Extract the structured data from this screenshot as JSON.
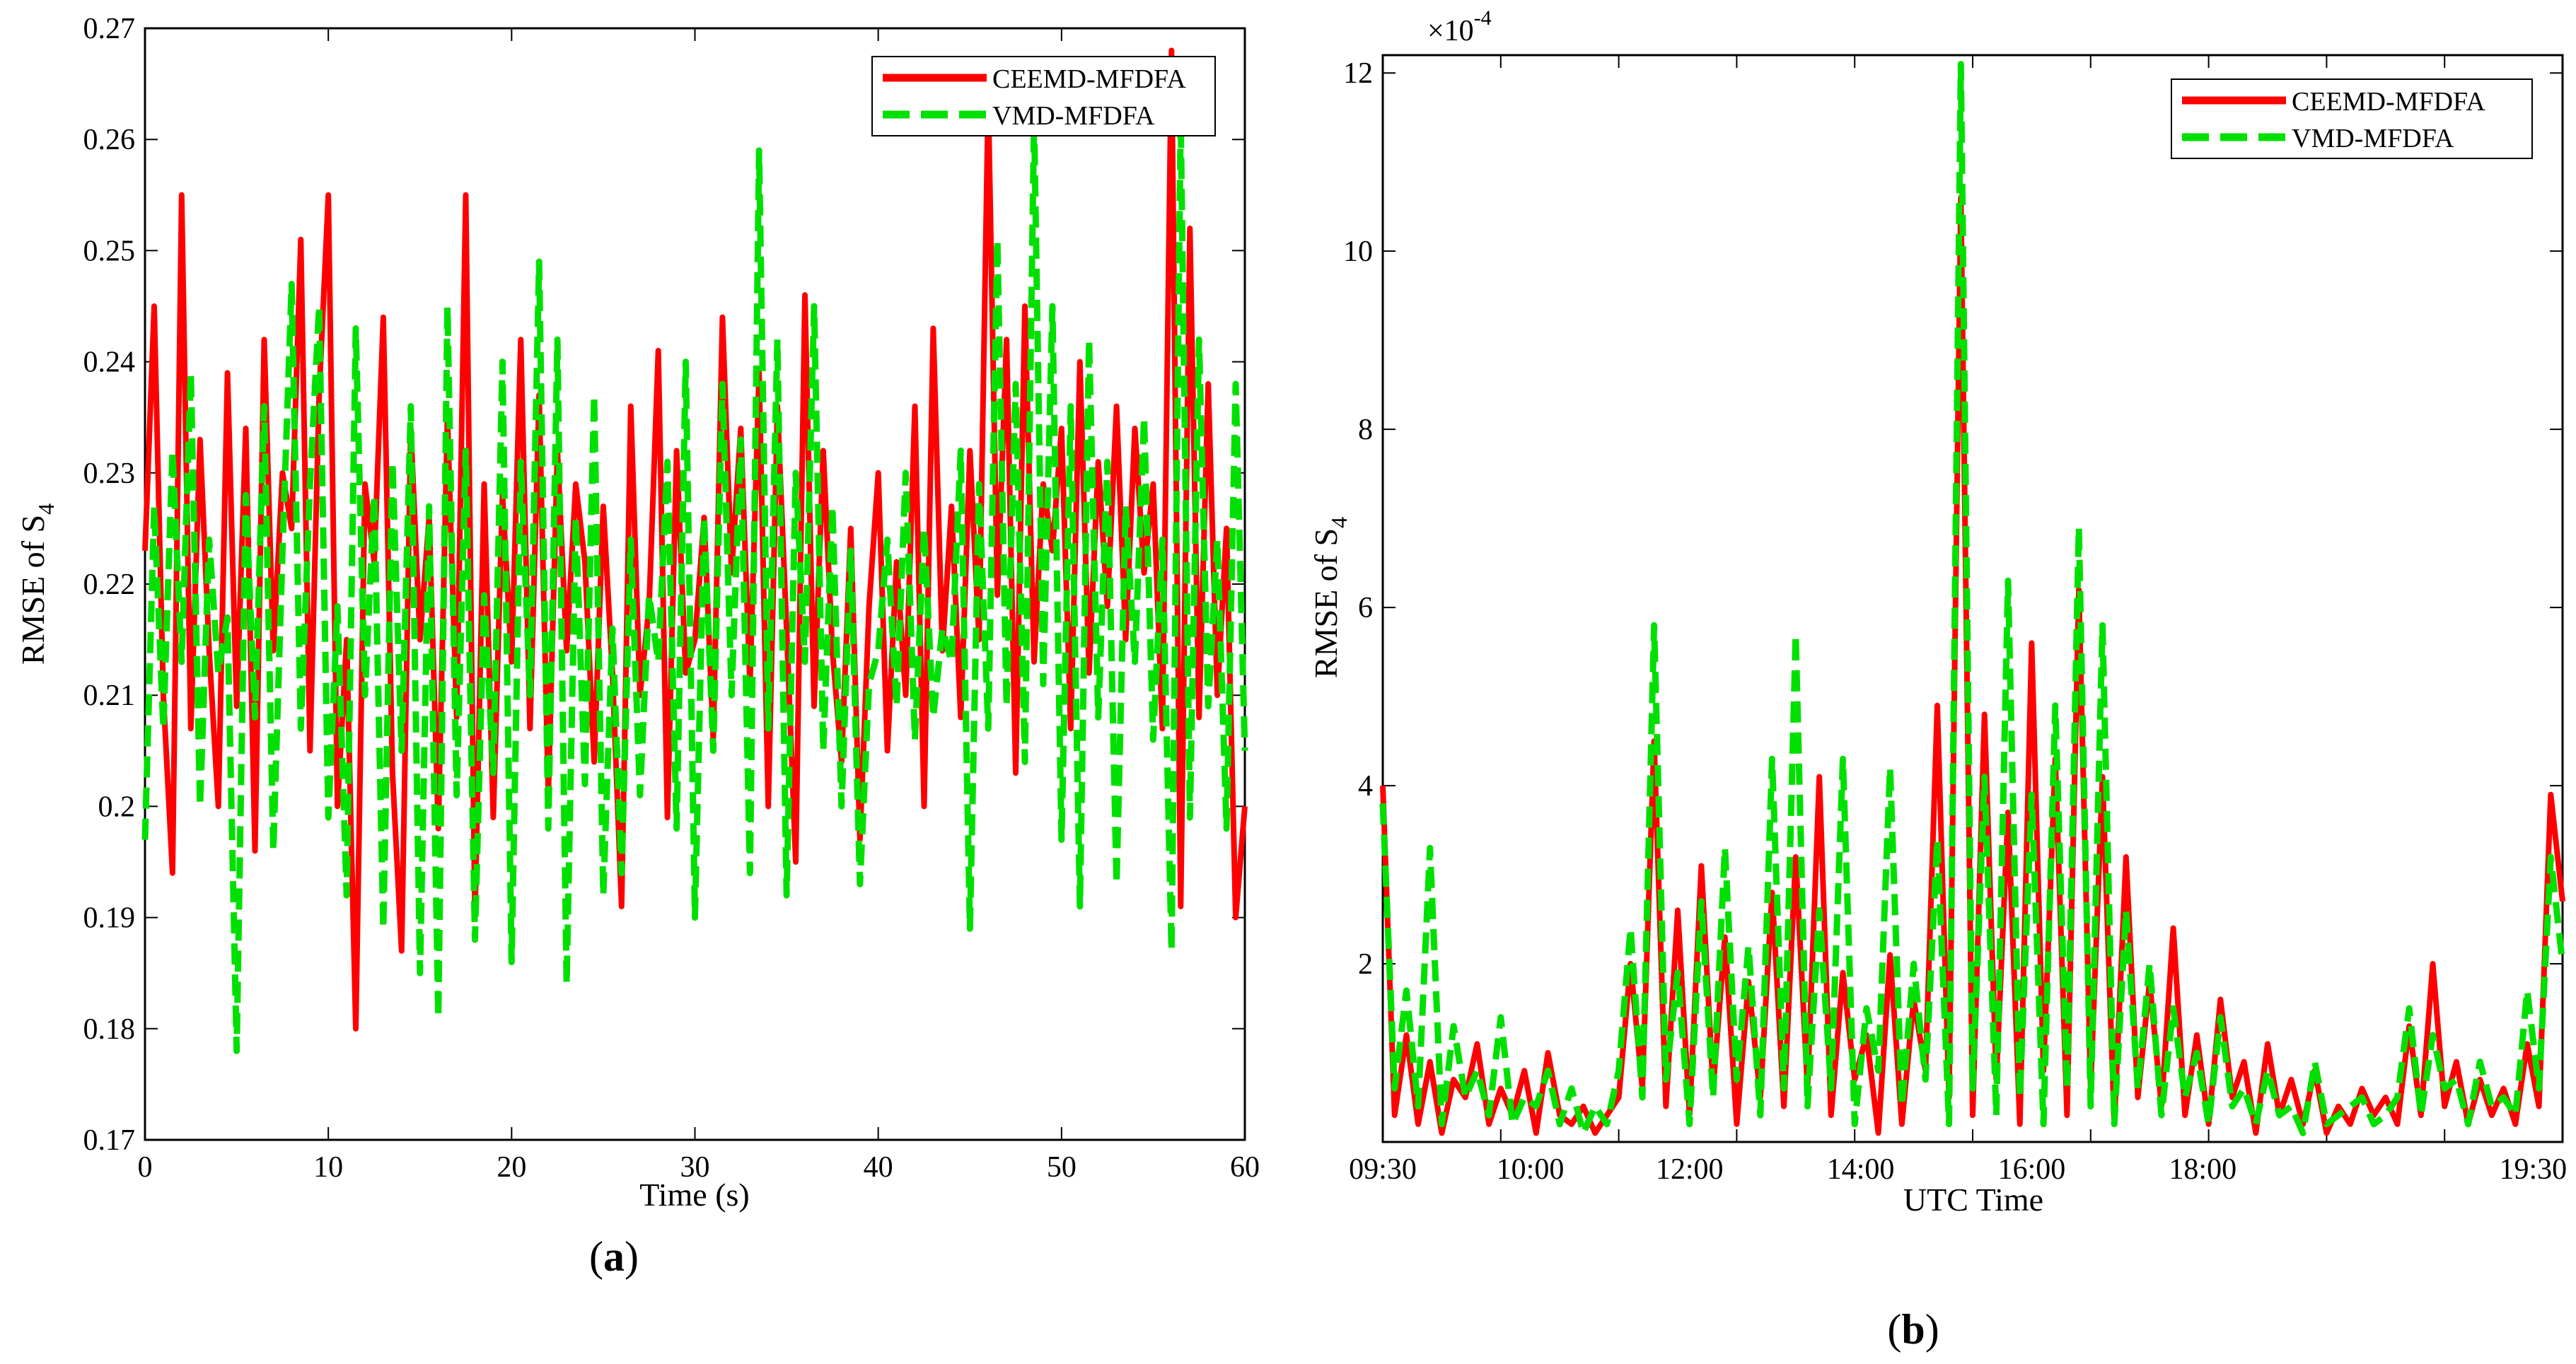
{
  "chart_data": [
    {
      "type": "line",
      "panel_label": "a",
      "title": "",
      "xlabel": "Time (s)",
      "ylabel": "RMSE of S",
      "ylabel_sub": "4",
      "xlim": [
        0,
        60
      ],
      "ylim": [
        0.17,
        0.27
      ],
      "xticks": [
        0,
        10,
        20,
        30,
        40,
        50,
        60
      ],
      "xtick_labels": [
        "0",
        "10",
        "20",
        "30",
        "40",
        "50",
        "60"
      ],
      "yticks": [
        0.17,
        0.18,
        0.19,
        0.2,
        0.21,
        0.22,
        0.23,
        0.24,
        0.25,
        0.26,
        0.27
      ],
      "ytick_labels": [
        "0.17",
        "0.18",
        "0.19",
        "0.2",
        "0.21",
        "0.22",
        "0.23",
        "0.24",
        "0.25",
        "0.26",
        "0.27"
      ],
      "legend_position": "top-right",
      "series": [
        {
          "name": "CEEMD-MFDFA",
          "color": "#ff0000",
          "style": "solid",
          "x": [
            0,
            0.5,
            1,
            1.5,
            2,
            2.5,
            3,
            3.5,
            4,
            4.5,
            5,
            5.5,
            6,
            6.5,
            7,
            7.5,
            8,
            8.5,
            9,
            9.5,
            10,
            10.5,
            11,
            11.5,
            12,
            12.5,
            13,
            13.5,
            14,
            14.5,
            15,
            15.5,
            16,
            16.5,
            17,
            17.5,
            18,
            18.5,
            19,
            19.5,
            20,
            20.5,
            21,
            21.5,
            22,
            22.5,
            23,
            23.5,
            24,
            24.5,
            25,
            25.5,
            26,
            26.5,
            27,
            27.5,
            28,
            28.5,
            29,
            29.5,
            30,
            30.5,
            31,
            31.5,
            32,
            32.5,
            33,
            33.5,
            34,
            34.5,
            35,
            35.5,
            36,
            36.5,
            37,
            37.5,
            38,
            38.5,
            39,
            39.5,
            40,
            40.5,
            41,
            41.5,
            42,
            42.5,
            43,
            43.5,
            44,
            44.5,
            45,
            45.5,
            46,
            46.5,
            47,
            47.5,
            48,
            48.5,
            49,
            49.5,
            50,
            50.5,
            51,
            51.5,
            52,
            52.5,
            53,
            53.5,
            54,
            54.5,
            55,
            55.5,
            56,
            56.5,
            57,
            57.5,
            58,
            58.5,
            59,
            59.5,
            60
          ],
          "y": [
            0.223,
            0.245,
            0.21,
            0.194,
            0.255,
            0.207,
            0.233,
            0.214,
            0.2,
            0.239,
            0.209,
            0.234,
            0.196,
            0.242,
            0.214,
            0.23,
            0.225,
            0.251,
            0.205,
            0.237,
            0.255,
            0.2,
            0.215,
            0.18,
            0.229,
            0.222,
            0.244,
            0.203,
            0.187,
            0.234,
            0.215,
            0.226,
            0.198,
            0.235,
            0.208,
            0.255,
            0.19,
            0.229,
            0.199,
            0.228,
            0.213,
            0.242,
            0.207,
            0.237,
            0.201,
            0.232,
            0.214,
            0.229,
            0.222,
            0.204,
            0.227,
            0.212,
            0.191,
            0.236,
            0.21,
            0.218,
            0.241,
            0.199,
            0.232,
            0.212,
            0.215,
            0.226,
            0.206,
            0.244,
            0.221,
            0.234,
            0.211,
            0.239,
            0.2,
            0.236,
            0.216,
            0.195,
            0.246,
            0.209,
            0.232,
            0.214,
            0.204,
            0.225,
            0.197,
            0.218,
            0.23,
            0.205,
            0.222,
            0.21,
            0.236,
            0.2,
            0.243,
            0.214,
            0.227,
            0.208,
            0.232,
            0.215,
            0.264,
            0.219,
            0.242,
            0.203,
            0.245,
            0.213,
            0.229,
            0.223,
            0.234,
            0.207,
            0.24,
            0.212,
            0.231,
            0.218,
            0.236,
            0.215,
            0.234,
            0.221,
            0.229,
            0.207,
            0.268,
            0.191,
            0.252,
            0.208,
            0.238,
            0.21,
            0.225,
            0.19,
            0.2
          ]
        },
        {
          "name": "VMD-MFDFA",
          "color": "#00e000",
          "style": "dashed",
          "x": [
            0,
            0.5,
            1,
            1.5,
            2,
            2.5,
            3,
            3.5,
            4,
            4.5,
            5,
            5.5,
            6,
            6.5,
            7,
            7.5,
            8,
            8.5,
            9,
            9.5,
            10,
            10.5,
            11,
            11.5,
            12,
            12.5,
            13,
            13.5,
            14,
            14.5,
            15,
            15.5,
            16,
            16.5,
            17,
            17.5,
            18,
            18.5,
            19,
            19.5,
            20,
            20.5,
            21,
            21.5,
            22,
            22.5,
            23,
            23.5,
            24,
            24.5,
            25,
            25.5,
            26,
            26.5,
            27,
            27.5,
            28,
            28.5,
            29,
            29.5,
            30,
            30.5,
            31,
            31.5,
            32,
            32.5,
            33,
            33.5,
            34,
            34.5,
            35,
            35.5,
            36,
            36.5,
            37,
            37.5,
            38,
            38.5,
            39,
            39.5,
            40,
            40.5,
            41,
            41.5,
            42,
            42.5,
            43,
            43.5,
            44,
            44.5,
            45,
            45.5,
            46,
            46.5,
            47,
            47.5,
            48,
            48.5,
            49,
            49.5,
            50,
            50.5,
            51,
            51.5,
            52,
            52.5,
            53,
            53.5,
            54,
            54.5,
            55,
            55.5,
            56,
            56.5,
            57,
            57.5,
            58,
            58.5,
            59,
            59.5,
            60
          ],
          "y": [
            0.197,
            0.227,
            0.207,
            0.232,
            0.213,
            0.239,
            0.2,
            0.224,
            0.212,
            0.217,
            0.178,
            0.228,
            0.208,
            0.236,
            0.196,
            0.223,
            0.247,
            0.207,
            0.229,
            0.245,
            0.199,
            0.218,
            0.192,
            0.243,
            0.21,
            0.228,
            0.189,
            0.231,
            0.205,
            0.236,
            0.185,
            0.227,
            0.181,
            0.245,
            0.201,
            0.232,
            0.188,
            0.219,
            0.203,
            0.24,
            0.186,
            0.231,
            0.21,
            0.249,
            0.198,
            0.242,
            0.184,
            0.226,
            0.202,
            0.237,
            0.192,
            0.216,
            0.194,
            0.224,
            0.201,
            0.219,
            0.213,
            0.231,
            0.198,
            0.24,
            0.19,
            0.226,
            0.205,
            0.238,
            0.21,
            0.233,
            0.194,
            0.259,
            0.207,
            0.242,
            0.192,
            0.23,
            0.213,
            0.245,
            0.205,
            0.227,
            0.2,
            0.223,
            0.193,
            0.211,
            0.214,
            0.224,
            0.209,
            0.23,
            0.206,
            0.225,
            0.208,
            0.216,
            0.213,
            0.232,
            0.189,
            0.229,
            0.207,
            0.251,
            0.209,
            0.238,
            0.204,
            0.262,
            0.211,
            0.245,
            0.197,
            0.236,
            0.191,
            0.242,
            0.208,
            0.231,
            0.193,
            0.227,
            0.213,
            0.235,
            0.206,
            0.224,
            0.187,
            0.262,
            0.199,
            0.242,
            0.209,
            0.224,
            0.198,
            0.238,
            0.205
          ]
        }
      ]
    },
    {
      "type": "line",
      "panel_label": "b",
      "title": "",
      "xlabel": "UTC Time",
      "ylabel": "RMSE of S",
      "ylabel_sub": "4",
      "exponent_label": "×10",
      "exponent_power": "-4",
      "xlim": [
        0,
        10
      ],
      "ylim": [
        0,
        12.2
      ],
      "xticks": [
        0,
        1,
        2,
        3,
        4,
        5,
        6,
        7,
        8,
        9,
        10
      ],
      "xtick_labels": [
        "09:30",
        "10:00",
        "12:00",
        "14:00",
        "16:00",
        "18:00",
        "19:30"
      ],
      "xtick_label_positions": [
        0,
        1.25,
        2.6,
        4.05,
        5.5,
        6.95,
        9.75
      ],
      "yticks": [
        2,
        4,
        6,
        8,
        10,
        12
      ],
      "ytick_labels": [
        "2",
        "4",
        "6",
        "8",
        "10",
        "12"
      ],
      "legend_position": "top-right",
      "series": [
        {
          "name": "CEEMD-MFDFA",
          "color": "#ff0000",
          "style": "solid",
          "x": [
            0,
            0.1,
            0.2,
            0.3,
            0.4,
            0.5,
            0.6,
            0.7,
            0.8,
            0.9,
            1,
            1.1,
            1.2,
            1.3,
            1.4,
            1.5,
            1.6,
            1.7,
            1.8,
            1.9,
            2,
            2.1,
            2.2,
            2.3,
            2.4,
            2.5,
            2.6,
            2.7,
            2.8,
            2.9,
            3,
            3.1,
            3.2,
            3.3,
            3.4,
            3.5,
            3.6,
            3.7,
            3.8,
            3.9,
            4,
            4.1,
            4.2,
            4.3,
            4.4,
            4.5,
            4.6,
            4.7,
            4.8,
            4.9,
            5,
            5.1,
            5.2,
            5.3,
            5.4,
            5.5,
            5.6,
            5.7,
            5.8,
            5.9,
            6,
            6.1,
            6.2,
            6.3,
            6.4,
            6.5,
            6.6,
            6.7,
            6.8,
            6.9,
            7,
            7.1,
            7.2,
            7.3,
            7.4,
            7.5,
            7.6,
            7.7,
            7.8,
            7.9,
            8,
            8.1,
            8.2,
            8.3,
            8.4,
            8.5,
            8.6,
            8.7,
            8.8,
            8.9,
            9,
            9.1,
            9.2,
            9.3,
            9.4,
            9.5,
            9.6,
            9.7,
            9.8,
            9.9,
            10
          ],
          "y": [
            4.0,
            0.3,
            1.2,
            0.2,
            0.9,
            0.1,
            0.7,
            0.5,
            1.1,
            0.2,
            0.6,
            0.3,
            0.8,
            0.1,
            1.0,
            0.3,
            0.2,
            0.4,
            0.1,
            0.3,
            0.5,
            2.0,
            0.6,
            4.5,
            0.4,
            2.6,
            0.3,
            3.1,
            0.6,
            2.3,
            0.2,
            1.8,
            0.5,
            2.8,
            0.4,
            3.2,
            0.6,
            4.1,
            0.3,
            1.9,
            0.7,
            1.2,
            0.1,
            2.1,
            0.2,
            1.6,
            0.8,
            4.9,
            0.5,
            10.6,
            0.3,
            4.8,
            0.7,
            3.7,
            0.2,
            5.6,
            0.8,
            4.3,
            0.3,
            6.2,
            0.6,
            4.1,
            0.2,
            3.2,
            0.5,
            1.8,
            0.4,
            2.4,
            0.3,
            1.2,
            0.2,
            1.6,
            0.5,
            0.9,
            0.1,
            1.1,
            0.3,
            0.7,
            0.2,
            0.8,
            0.1,
            0.4,
            0.2,
            0.6,
            0.3,
            0.5,
            0.2,
            1.3,
            0.3,
            2.0,
            0.4,
            0.9,
            0.2,
            0.7,
            0.3,
            0.6,
            0.2,
            1.1,
            0.4,
            3.9,
            2.7
          ]
        },
        {
          "name": "VMD-MFDFA",
          "color": "#00e000",
          "style": "dashed",
          "x": [
            0,
            0.1,
            0.2,
            0.3,
            0.4,
            0.5,
            0.6,
            0.7,
            0.8,
            0.9,
            1,
            1.1,
            1.2,
            1.3,
            1.4,
            1.5,
            1.6,
            1.7,
            1.8,
            1.9,
            2,
            2.1,
            2.2,
            2.3,
            2.4,
            2.5,
            2.6,
            2.7,
            2.8,
            2.9,
            3,
            3.1,
            3.2,
            3.3,
            3.4,
            3.5,
            3.6,
            3.7,
            3.8,
            3.9,
            4,
            4.1,
            4.2,
            4.3,
            4.4,
            4.5,
            4.6,
            4.7,
            4.8,
            4.9,
            5,
            5.1,
            5.2,
            5.3,
            5.4,
            5.5,
            5.6,
            5.7,
            5.8,
            5.9,
            6,
            6.1,
            6.2,
            6.3,
            6.4,
            6.5,
            6.6,
            6.7,
            6.8,
            6.9,
            7,
            7.1,
            7.2,
            7.3,
            7.4,
            7.5,
            7.6,
            7.7,
            7.8,
            7.9,
            8,
            8.1,
            8.2,
            8.3,
            8.4,
            8.5,
            8.6,
            8.7,
            8.8,
            8.9,
            9,
            9.1,
            9.2,
            9.3,
            9.4,
            9.5,
            9.6,
            9.7,
            9.8,
            9.9,
            10
          ],
          "y": [
            3.8,
            0.6,
            1.7,
            0.4,
            3.3,
            0.2,
            1.3,
            0.5,
            0.8,
            0.3,
            1.4,
            0.2,
            0.5,
            0.4,
            0.8,
            0.2,
            0.6,
            0.1,
            0.4,
            0.2,
            0.8,
            2.4,
            0.5,
            5.8,
            0.7,
            1.9,
            0.2,
            2.7,
            0.5,
            3.3,
            0.7,
            2.2,
            0.3,
            4.3,
            0.6,
            5.7,
            0.4,
            2.6,
            0.6,
            4.3,
            0.2,
            1.5,
            0.8,
            4.2,
            0.4,
            2.0,
            0.7,
            3.4,
            0.2,
            12.1,
            0.6,
            4.1,
            0.3,
            6.3,
            0.5,
            3.9,
            0.2,
            4.9,
            0.6,
            6.9,
            0.4,
            5.8,
            0.2,
            2.6,
            0.6,
            2.0,
            0.3,
            1.5,
            0.5,
            1.0,
            0.2,
            1.4,
            0.4,
            0.6,
            0.2,
            0.8,
            0.3,
            0.4,
            0.1,
            0.9,
            0.2,
            0.3,
            0.4,
            0.5,
            0.2,
            0.3,
            0.5,
            1.5,
            0.3,
            1.2,
            0.6,
            0.7,
            0.2,
            0.9,
            0.4,
            0.5,
            0.3,
            1.7,
            0.6,
            3.2,
            2.0
          ]
        }
      ]
    }
  ]
}
